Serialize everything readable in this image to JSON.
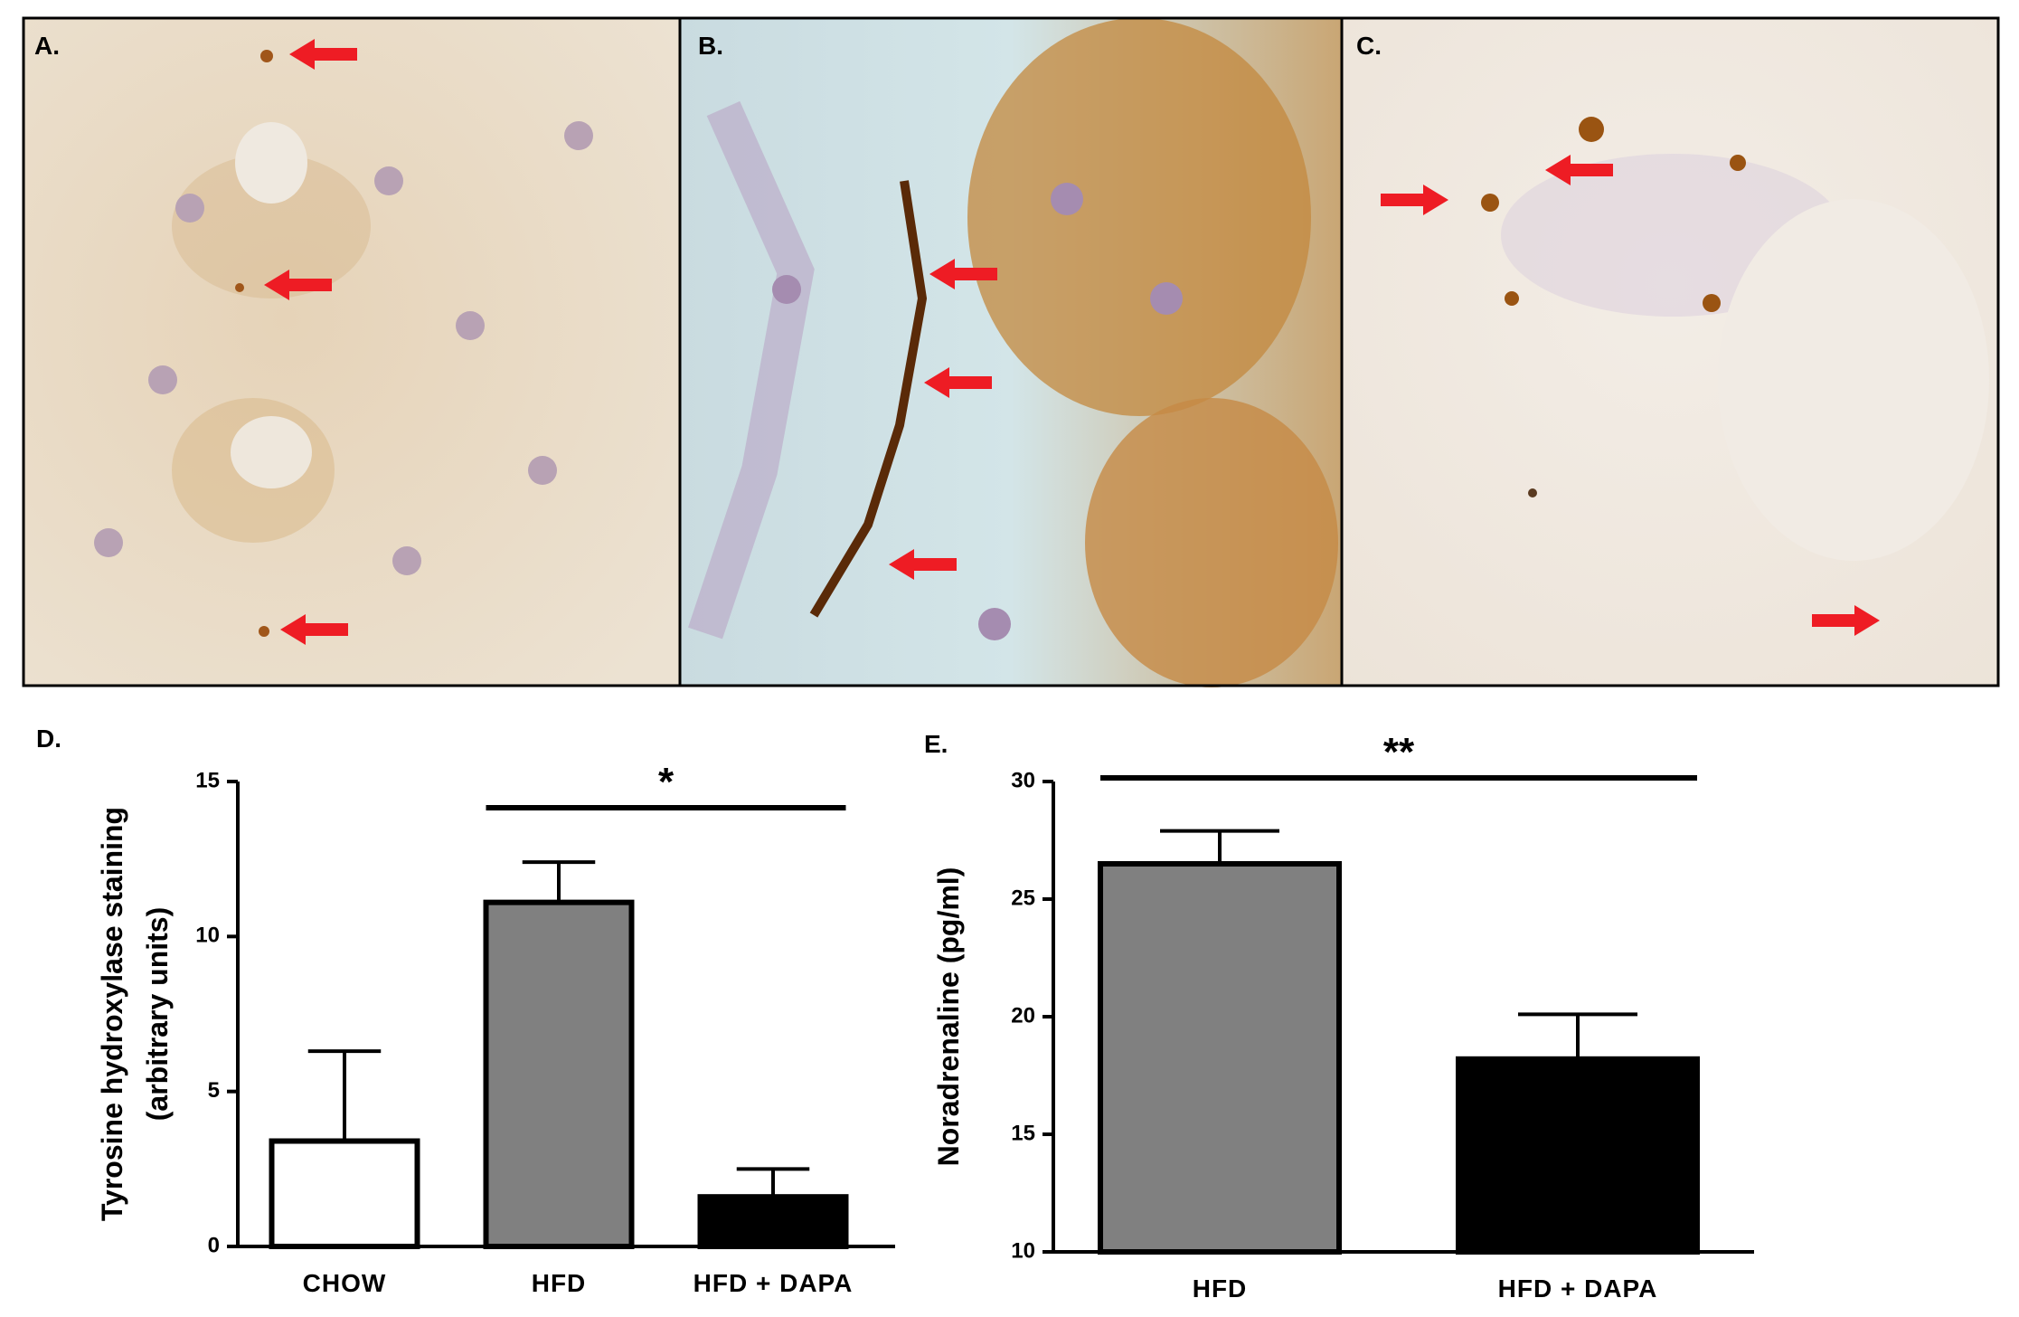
{
  "panels": [
    {
      "label": "A."
    },
    {
      "label": "B."
    },
    {
      "label": "C."
    }
  ],
  "chart_data": [
    {
      "type": "bar",
      "label": "D.",
      "ylabel": [
        "Tyrosine hydroxylase staining",
        "(arbitrary units)"
      ],
      "categories": [
        "CHOW",
        "HFD",
        "HFD + DAPA"
      ],
      "values": [
        3.4,
        11.1,
        1.6
      ],
      "errors": [
        2.9,
        1.3,
        0.9
      ],
      "colors": [
        "#ffffff",
        "#808080",
        "#000000"
      ],
      "ylim": [
        0,
        15
      ],
      "yticks": [
        0,
        5,
        10,
        15
      ],
      "significance": {
        "label": "*",
        "span": [
          1,
          2
        ]
      }
    },
    {
      "type": "bar",
      "label": "E.",
      "ylabel": [
        "Noradrenaline (pg/ml)"
      ],
      "categories": [
        "HFD",
        "HFD + DAPA"
      ],
      "values": [
        26.5,
        18.2
      ],
      "errors": [
        1.4,
        1.9
      ],
      "colors": [
        "#808080",
        "#000000"
      ],
      "ylim": [
        10,
        30
      ],
      "yticks": [
        10,
        15,
        20,
        25,
        30
      ],
      "significance": {
        "label": "**",
        "span": [
          0,
          1
        ]
      }
    }
  ]
}
